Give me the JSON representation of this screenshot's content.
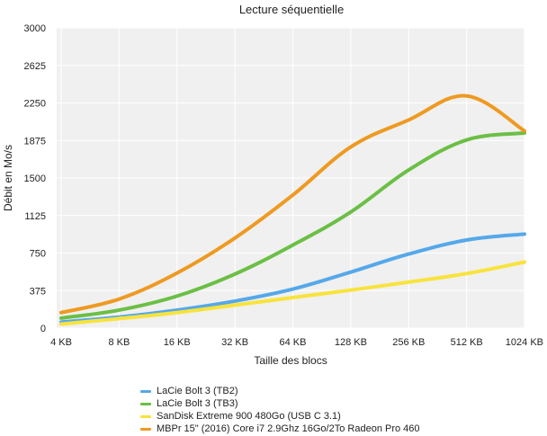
{
  "chart_data": {
    "type": "line",
    "title": "Lecture séquentielle",
    "xlabel": "Taille des blocs",
    "ylabel": "Débit en Mo/s",
    "categories": [
      "4 KB",
      "8 KB",
      "16 KB",
      "32 KB",
      "64 KB",
      "128 KB",
      "256 KB",
      "512 KB",
      "1024 KB"
    ],
    "yticks": [
      "0",
      "375",
      "750",
      "1125",
      "1500",
      "1875",
      "2250",
      "2625",
      "3000"
    ],
    "ylim": [
      0,
      3000
    ],
    "grid": true,
    "legend_position": "bottom",
    "series": [
      {
        "name": "LaCie Bolt 3 (TB2)",
        "color": "#55a8ea",
        "values": [
          60,
          110,
          180,
          270,
          390,
          560,
          740,
          880,
          940
        ]
      },
      {
        "name": "LaCie Bolt 3 (TB3)",
        "color": "#6bbf45",
        "values": [
          100,
          180,
          320,
          540,
          830,
          1160,
          1580,
          1880,
          1950
        ]
      },
      {
        "name": "SanDisk Extreme 900 480Go (USB C 3.1)",
        "color": "#f8e33c",
        "values": [
          40,
          95,
          155,
          230,
          305,
          380,
          460,
          545,
          660
        ]
      },
      {
        "name": "MBPr 15\" (2016) Core i7 2.9Ghz 16Go/2To Radeon Pro 460",
        "color": "#ee9a22",
        "values": [
          155,
          290,
          550,
          900,
          1330,
          1810,
          2080,
          2320,
          1970
        ]
      }
    ]
  }
}
